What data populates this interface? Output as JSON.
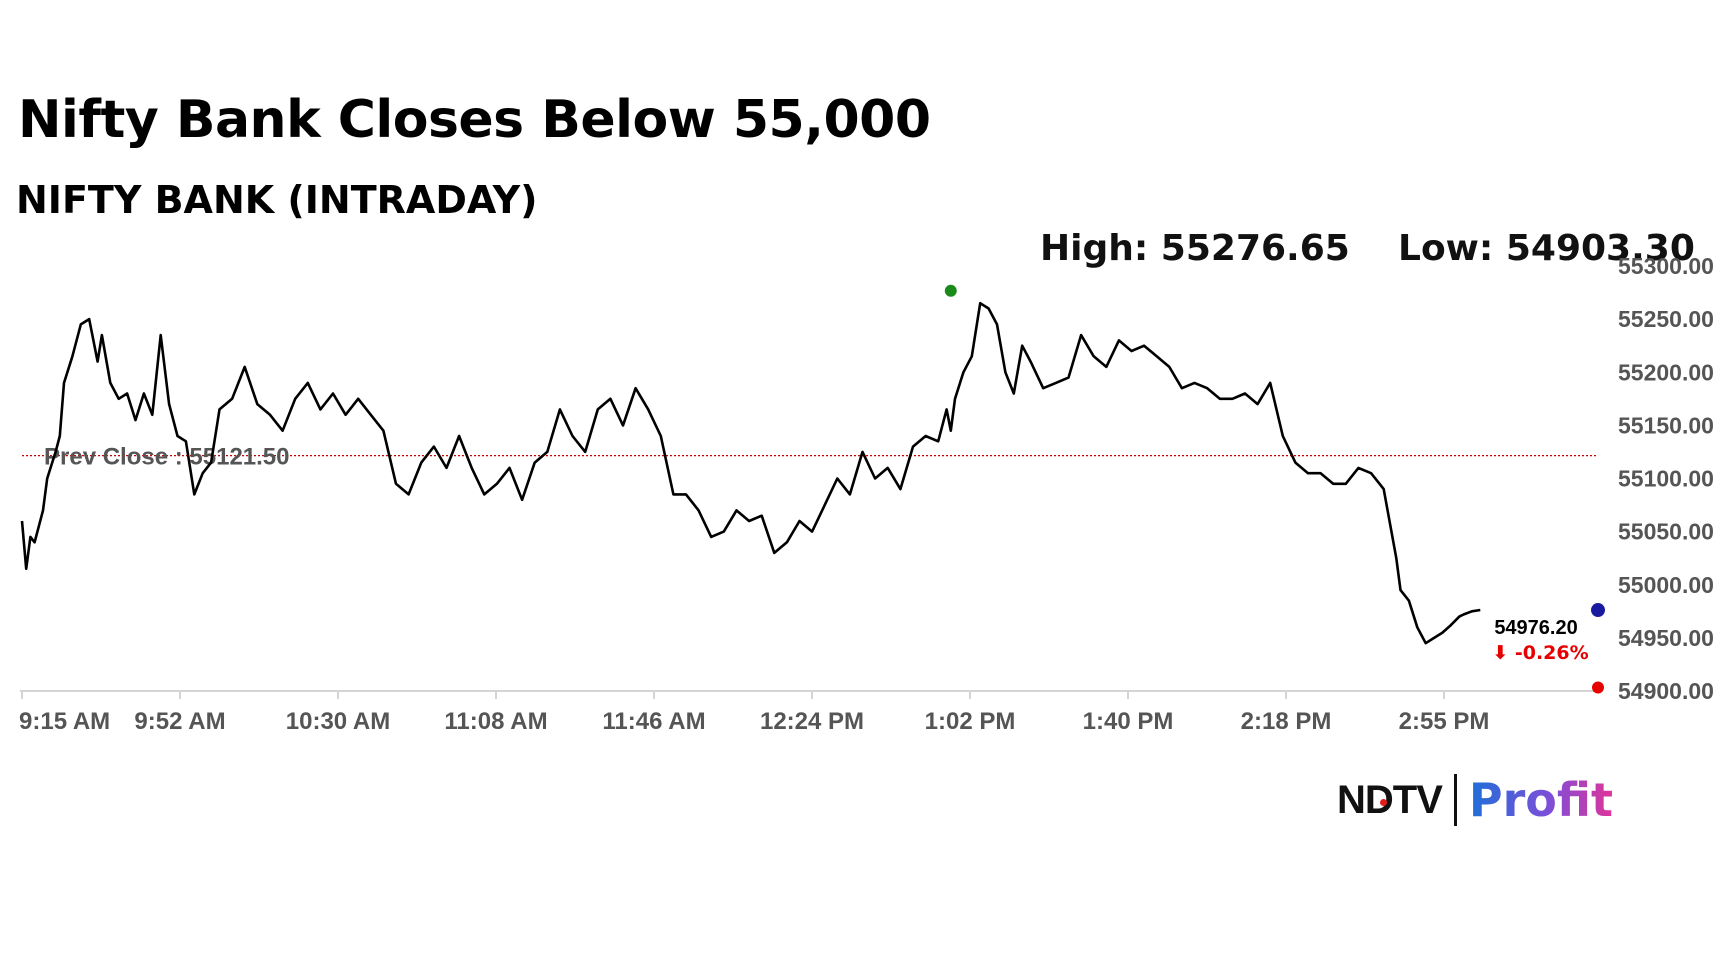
{
  "header": {
    "title": "Nifty Bank Closes Below 55,000",
    "subtitle": "NIFTY BANK (INTRADAY)",
    "high_text": "High: 55276.65",
    "low_text": "Low: 54903.30"
  },
  "brand": {
    "ndtv": "NDTV",
    "profit": "Profit"
  },
  "colors": {
    "line": "#000000",
    "prev_close_line": "#cc0000",
    "high_marker": "#1a8a1a",
    "low_marker": "#e60000",
    "last_marker": "#1a1aa0",
    "change_text": "#e60000"
  },
  "chart_data": {
    "type": "line",
    "title": "NIFTY BANK (INTRADAY)",
    "x_tick_labels": [
      "9:15 AM",
      "9:52 AM",
      "10:30 AM",
      "11:08 AM",
      "11:46 AM",
      "12:24 PM",
      "1:02 PM",
      "1:40 PM",
      "2:18 PM",
      "2:55 PM"
    ],
    "y_tick_labels": [
      "55300.00",
      "55250.00",
      "55200.00",
      "55150.00",
      "55100.00",
      "55050.00",
      "55000.00",
      "54950.00",
      "54900.00"
    ],
    "ylim": [
      54900,
      55300
    ],
    "xlim_minutes_after_open": [
      0,
      375
    ],
    "prev_close": 55121.5,
    "prev_close_label": "Prev Close : 55121.50",
    "high": 55276.65,
    "high_time_minutes": 221,
    "low": 54903.3,
    "low_time_minutes": 375,
    "last_value": 54976.2,
    "last_value_label": "54976.20",
    "change_label": "⬇ -0.26%",
    "series": [
      {
        "x_minutes": [
          0,
          1,
          2,
          3,
          5,
          6,
          8,
          9,
          10,
          12,
          14,
          16,
          18,
          19,
          21,
          23,
          25,
          27,
          29,
          31,
          33,
          35,
          37,
          39,
          41,
          43,
          45,
          47,
          50,
          53,
          56,
          59,
          62,
          65,
          68,
          71,
          74,
          77,
          80,
          83,
          86,
          89,
          92,
          95,
          98,
          101,
          104,
          107,
          110,
          113,
          116,
          119,
          122,
          125,
          128,
          131,
          134,
          137,
          140,
          143,
          146,
          149,
          152,
          155,
          158,
          161,
          164,
          167,
          170,
          173,
          176,
          179,
          182,
          185,
          188,
          191,
          194,
          197,
          200,
          203,
          206,
          209,
          212,
          215,
          218,
          220,
          221,
          222,
          224,
          226,
          228,
          230,
          232,
          234,
          236,
          238,
          240,
          243,
          246,
          249,
          252,
          255,
          258,
          261,
          264,
          267,
          270,
          273,
          276,
          279,
          282,
          285,
          288,
          291,
          294,
          297,
          300,
          303,
          306,
          309,
          312,
          315,
          318,
          321,
          324,
          327,
          328,
          330,
          332,
          334,
          336,
          338,
          340,
          342,
          343,
          345,
          347
        ],
        "values": [
          55060,
          55015,
          55045,
          55040,
          55070,
          55100,
          55125,
          55140,
          55190,
          55215,
          55245,
          55250,
          55210,
          55235,
          55190,
          55175,
          55180,
          55155,
          55180,
          55160,
          55235,
          55170,
          55140,
          55135,
          55085,
          55105,
          55115,
          55165,
          55175,
          55205,
          55170,
          55160,
          55145,
          55175,
          55190,
          55165,
          55180,
          55160,
          55175,
          55160,
          55145,
          55095,
          55085,
          55115,
          55130,
          55110,
          55140,
          55110,
          55085,
          55095,
          55110,
          55080,
          55115,
          55125,
          55165,
          55140,
          55125,
          55165,
          55175,
          55150,
          55185,
          55165,
          55140,
          55085,
          55085,
          55070,
          55045,
          55050,
          55070,
          55060,
          55065,
          55030,
          55040,
          55060,
          55050,
          55075,
          55100,
          55085,
          55125,
          55100,
          55110,
          55090,
          55130,
          55140,
          55135,
          55165,
          55145,
          55175,
          55200,
          55215,
          55265,
          55260,
          55245,
          55200,
          55180,
          55225,
          55210,
          55185,
          55190,
          55195,
          55235,
          55215,
          55205,
          55230,
          55220,
          55225,
          55215,
          55205,
          55185,
          55190,
          55185,
          55175,
          55175,
          55180,
          55170,
          55190,
          55140,
          55115,
          55105,
          55105,
          55095,
          55095,
          55110,
          55105,
          55090,
          55025,
          54995,
          54985,
          54960,
          54945,
          54950,
          54955,
          54962,
          54970,
          54972,
          54975,
          54976.2
        ]
      }
    ]
  }
}
